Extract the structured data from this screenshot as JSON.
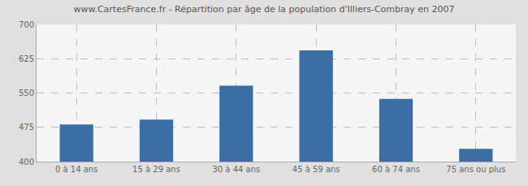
{
  "chart_data": {
    "type": "bar",
    "title": "www.CartesFrance.fr - Répartition par âge de la population d'Illiers-Combray en 2007",
    "categories": [
      "0 à 14 ans",
      "15 à 29 ans",
      "30 à 44 ans",
      "45 à 59 ans",
      "60 à 74 ans",
      "75 ans ou plus"
    ],
    "values": [
      481,
      492,
      566,
      643,
      537,
      428
    ],
    "color": "#3a6ea5",
    "ylim": [
      400,
      700
    ],
    "yticks": [
      400,
      475,
      550,
      625,
      700
    ],
    "grid": true
  }
}
